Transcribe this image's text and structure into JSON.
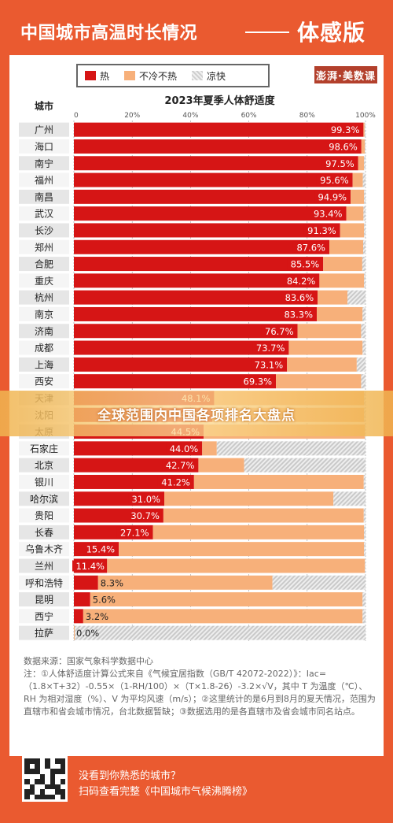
{
  "header": {
    "title": "中国城市高温时长情况",
    "subtitle": "体感版"
  },
  "brand": "澎湃·美数课",
  "legend": [
    {
      "label": "热",
      "color": "#d61515"
    },
    {
      "label": "不冷不热",
      "color": "#f7b07a"
    },
    {
      "label": "凉快",
      "color": "#d8d8d8"
    }
  ],
  "chart_data": {
    "type": "bar",
    "orientation": "horizontal",
    "stacked": true,
    "title": "2023年夏季人体舒适度",
    "category_axis_label": "城市",
    "value_axis_ticks": [
      "0",
      "20%",
      "40%",
      "60%",
      "80%",
      "100%"
    ],
    "xlim": [
      0,
      100
    ],
    "categories": [
      "广州",
      "海口",
      "南宁",
      "福州",
      "南昌",
      "武汉",
      "长沙",
      "郑州",
      "合肥",
      "重庆",
      "杭州",
      "南京",
      "济南",
      "成都",
      "上海",
      "西安",
      "天津",
      "沈阳",
      "太原",
      "石家庄",
      "北京",
      "银川",
      "哈尔滨",
      "贵阳",
      "长春",
      "乌鲁木齐",
      "兰州",
      "呼和浩特",
      "昆明",
      "西宁",
      "拉萨"
    ],
    "series": [
      {
        "name": "热",
        "color": "#d61515",
        "values": [
          99.3,
          98.6,
          97.5,
          95.6,
          94.9,
          93.4,
          91.3,
          87.6,
          85.5,
          84.2,
          83.6,
          83.3,
          76.7,
          73.7,
          73.1,
          69.3,
          48.1,
          47.5,
          44.5,
          44.0,
          42.7,
          41.2,
          31.0,
          30.7,
          27.1,
          15.4,
          11.4,
          8.3,
          5.6,
          3.2,
          0.0
        ]
      },
      {
        "name": "不冷不热",
        "color": "#f7b07a",
        "values": [
          0.4,
          1.2,
          2.0,
          3.5,
          4.6,
          5.9,
          8.2,
          11.6,
          13.4,
          15.3,
          10.2,
          15.7,
          21.8,
          25.3,
          23.9,
          29.2,
          51.4,
          52.0,
          55.3,
          5.0,
          15.7,
          58.2,
          58.0,
          68.7,
          72.4,
          84.1,
          88.4,
          59.8,
          93.4,
          95.8,
          0.3
        ]
      },
      {
        "name": "凉快",
        "color": "#d8d8d8",
        "values": [
          0.3,
          0.2,
          0.5,
          0.9,
          0.5,
          0.7,
          0.5,
          0.8,
          1.1,
          0.5,
          6.2,
          1.0,
          1.5,
          1.0,
          3.0,
          1.5,
          0.5,
          0.5,
          0.2,
          51.0,
          41.6,
          0.6,
          11.0,
          0.6,
          0.5,
          0.5,
          0.2,
          31.9,
          1.0,
          1.0,
          99.7
        ]
      }
    ],
    "data_labels": [
      "99.3%",
      "98.6%",
      "97.5%",
      "95.6%",
      "94.9%",
      "93.4%",
      "91.3%",
      "87.6%",
      "85.5%",
      "84.2%",
      "83.6%",
      "83.3%",
      "76.7%",
      "73.7%",
      "73.1%",
      "69.3%",
      "48.1%",
      "47.5%",
      "44.5%",
      "44.0%",
      "42.7%",
      "41.2%",
      "31.0%",
      "30.7%",
      "27.1%",
      "15.4%",
      "11.4%",
      "8.3%",
      "5.6%",
      "3.2%",
      "0.0%"
    ]
  },
  "footnotes": [
    "数据来源：国家气象科学数据中心",
    "注：①人体舒适度计算公式来自《气候宜居指数（GB/T 42072-2022）》：Iac=（1.8×T+32）-0.55×（1-RH/100）×（T×1.8-26）-3.2×√V，其中 T 为温度（℃）、RH 为相对湿度（%）、V 为平均风速（m/s）；②这里统计的是6月到8月的夏天情况，范围为直辖市和省会城市情况，台北数据暂缺；③数据选用的是各直辖市及省会城市同名站点。"
  ],
  "banner": "全球范围内中国各项排名大盘点",
  "cta": {
    "line1": "没看到你熟悉的城市？",
    "line2": "扫码查看完整《中国城市气候沸腾榜》"
  }
}
